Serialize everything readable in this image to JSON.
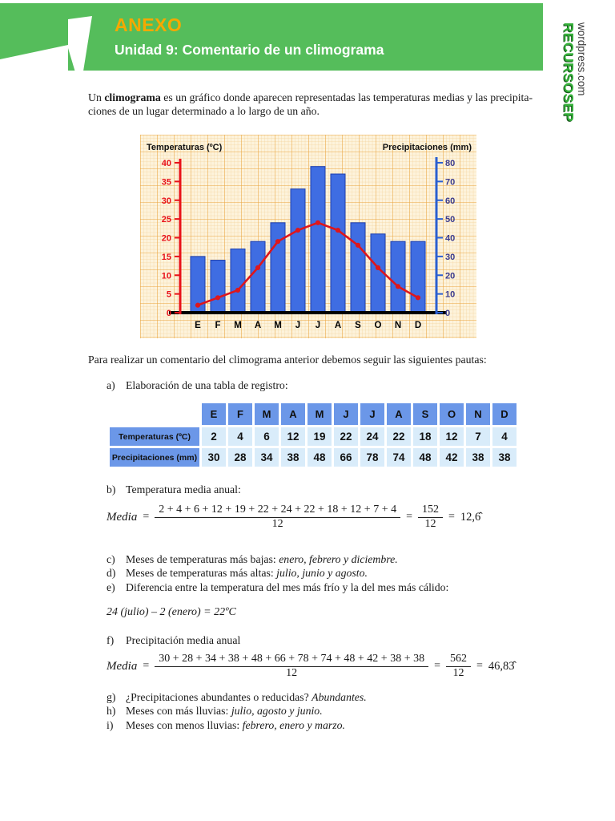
{
  "header": {
    "title": "ANEXO",
    "subtitle": "Unidad 9: Comentario de un climograma",
    "banner_color": "#55bd5b",
    "title_color": "#f6a800"
  },
  "logo": {
    "site": "RECURSOSEP",
    "host": "wordpress.com"
  },
  "intro": {
    "before": "Un ",
    "bold": "climograma",
    "line1_rest": " es un gráfico donde aparecen representadas las temperaturas medias y las precipita-",
    "line2": "ciones de un lugar determinado a lo largo de un año."
  },
  "instructions": "Para realizar un comentario del climograma anterior  debemos seguir las siguientes pautas:",
  "chart_data": {
    "type": "bar",
    "subtype": "climograph-bar-plus-line",
    "months": [
      "E",
      "F",
      "M",
      "A",
      "M",
      "J",
      "J",
      "A",
      "S",
      "O",
      "N",
      "D"
    ],
    "series": [
      {
        "name": "Precipitaciones (mm)",
        "type": "bar",
        "axis": "right",
        "color": "#3f6de2",
        "border_color": "#1c3eae",
        "values": [
          30,
          28,
          34,
          38,
          48,
          66,
          78,
          74,
          48,
          42,
          38,
          38
        ]
      },
      {
        "name": "Temperaturas (ºC)",
        "type": "line",
        "axis": "left",
        "color": "#de161c",
        "values": [
          2,
          4,
          6,
          12,
          19,
          22,
          24,
          22,
          18,
          12,
          7,
          4
        ]
      }
    ],
    "left_axis": {
      "label": "Temperaturas (ºC)",
      "min": 0,
      "max": 40,
      "step": 5,
      "color": "#e8121a"
    },
    "right_axis": {
      "label": "Precipitaciones (mm)",
      "min": 0,
      "max": 80,
      "step": 10,
      "color": "#2b5fd0"
    },
    "grid": "orange graph paper",
    "legend_position": "none"
  },
  "table": {
    "months": [
      "E",
      "F",
      "M",
      "A",
      "M",
      "J",
      "J",
      "A",
      "S",
      "O",
      "N",
      "D"
    ],
    "rows": [
      {
        "label": "Temperaturas (ºC)",
        "values": [
          "2",
          "4",
          "6",
          "12",
          "19",
          "22",
          "24",
          "22",
          "18",
          "12",
          "7",
          "4"
        ]
      },
      {
        "label": "Precipitaciones (mm)",
        "values": [
          "30",
          "28",
          "34",
          "38",
          "48",
          "66",
          "78",
          "74",
          "48",
          "42",
          "38",
          "38"
        ]
      }
    ]
  },
  "items": {
    "a": {
      "label": "a)",
      "text": "Elaboración de una tabla de registro:"
    },
    "b": {
      "label": "b)",
      "text": "Temperatura media anual:"
    },
    "c": {
      "label": "c)",
      "text": "Meses de temperaturas más bajas: ",
      "italic": "enero, febrero y diciembre."
    },
    "d": {
      "label": "d)",
      "text": "Meses de temperaturas más altas: ",
      "italic": "julio, junio y agosto."
    },
    "e": {
      "label": "e)",
      "text": "Diferencia entre la temperatura del mes más frío y la del mes más cálido:"
    },
    "f": {
      "label": "f)",
      "text": "Precipitación media anual"
    },
    "g": {
      "label": "g)",
      "text": "¿Precipitaciones abundantes o reducidas? ",
      "italic": "Abundantes."
    },
    "h": {
      "label": "h)",
      "text": "Meses con más lluvias: ",
      "italic": "julio, agosto y junio."
    },
    "i": {
      "label": "i)",
      "text": "Meses con menos lluvias: ",
      "italic": "febrero, enero y marzo."
    }
  },
  "formulas": {
    "temp": {
      "lhs": "Media",
      "eq": "=",
      "num": "2 + 4 + 6 + 12 + 19 + 22 + 24 + 22 + 18 + 12 + 7 + 4",
      "den": "12",
      "num2": "152",
      "den2": "12",
      "result": "12,6̂"
    },
    "prec": {
      "lhs": "Media",
      "eq": "=",
      "num": "30 + 28 + 34 + 38 + 48 + 66 + 78 + 74 + 48 + 42 + 38 + 38",
      "den": "12",
      "num2": "562",
      "den2": "12",
      "result": "46,83̂"
    }
  },
  "diff_line": "24 (julio) – 2 (enero) = 22ºC"
}
